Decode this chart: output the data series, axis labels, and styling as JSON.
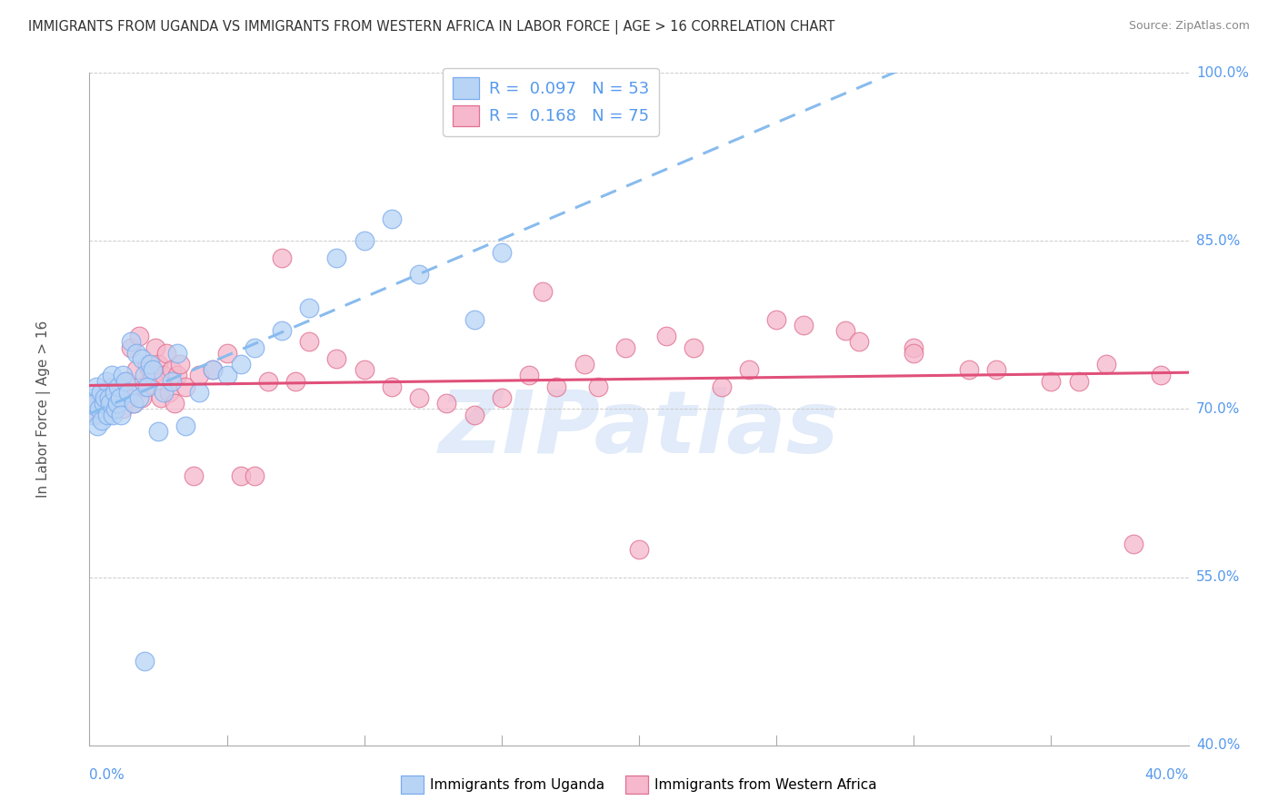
{
  "title": "IMMIGRANTS FROM UGANDA VS IMMIGRANTS FROM WESTERN AFRICA IN LABOR FORCE | AGE > 16 CORRELATION CHART",
  "source": "Source: ZipAtlas.com",
  "ylabel_label": "In Labor Force | Age > 16",
  "xmin": 0.0,
  "xmax": 40.0,
  "ymin": 40.0,
  "ymax": 100.0,
  "yticks": [
    40.0,
    55.0,
    70.0,
    85.0,
    100.0
  ],
  "xticks": [
    0.0,
    5.0,
    10.0,
    15.0,
    20.0,
    25.0,
    30.0,
    35.0,
    40.0
  ],
  "uganda_color": "#b8d4f5",
  "uganda_edge": "#7aabee",
  "western_africa_color": "#f5b8cc",
  "western_africa_edge": "#e07090",
  "trend_uganda_color": "#88bbee",
  "trend_western_color": "#e0507a",
  "legend_label_uganda": "Immigrants from Uganda",
  "legend_label_western": "Immigrants from Western Africa",
  "watermark": "ZIPatlas",
  "uganda_x": [
    0.1,
    0.15,
    0.2,
    0.25,
    0.3,
    0.35,
    0.4,
    0.45,
    0.5,
    0.55,
    0.6,
    0.65,
    0.7,
    0.75,
    0.8,
    0.85,
    0.9,
    0.95,
    1.0,
    1.05,
    1.1,
    1.15,
    1.2,
    1.3,
    1.4,
    1.5,
    1.6,
    1.7,
    1.8,
    1.9,
    2.0,
    2.1,
    2.2,
    2.3,
    2.5,
    2.7,
    3.0,
    3.2,
    3.5,
    4.0,
    4.5,
    5.0,
    5.5,
    6.0,
    7.0,
    8.0,
    9.0,
    10.0,
    11.0,
    12.0,
    14.0,
    15.0,
    2.0
  ],
  "uganda_y": [
    69.5,
    71.0,
    70.5,
    72.0,
    68.5,
    70.0,
    71.5,
    69.0,
    70.5,
    71.0,
    72.5,
    69.5,
    71.0,
    70.5,
    73.0,
    69.5,
    71.5,
    70.0,
    70.5,
    72.0,
    71.0,
    69.5,
    73.0,
    72.5,
    71.5,
    76.0,
    70.5,
    75.0,
    71.0,
    74.5,
    73.0,
    72.0,
    74.0,
    73.5,
    68.0,
    71.5,
    72.5,
    75.0,
    68.5,
    71.5,
    73.5,
    73.0,
    74.0,
    75.5,
    77.0,
    79.0,
    83.5,
    85.0,
    87.0,
    82.0,
    78.0,
    84.0,
    47.5
  ],
  "western_x": [
    0.1,
    0.2,
    0.3,
    0.4,
    0.5,
    0.6,
    0.7,
    0.8,
    0.9,
    1.0,
    1.1,
    1.2,
    1.3,
    1.4,
    1.5,
    1.6,
    1.7,
    1.8,
    1.9,
    2.0,
    2.1,
    2.2,
    2.3,
    2.4,
    2.5,
    2.6,
    2.7,
    2.8,
    2.9,
    3.0,
    3.1,
    3.2,
    3.3,
    3.5,
    3.8,
    4.0,
    4.5,
    5.0,
    5.5,
    6.0,
    6.5,
    7.0,
    7.5,
    8.0,
    9.0,
    10.0,
    11.0,
    12.0,
    13.0,
    14.0,
    15.0,
    16.0,
    17.0,
    18.0,
    19.5,
    21.0,
    23.0,
    25.0,
    27.5,
    30.0,
    33.0,
    36.0,
    38.0,
    20.0,
    22.0,
    26.0,
    28.0,
    30.0,
    32.0,
    35.0,
    37.0,
    39.0,
    16.5,
    18.5,
    24.0
  ],
  "western_y": [
    70.0,
    69.5,
    70.5,
    71.0,
    70.0,
    71.5,
    70.5,
    72.0,
    71.0,
    70.5,
    71.5,
    70.0,
    72.5,
    71.0,
    75.5,
    70.5,
    73.5,
    76.5,
    71.0,
    72.0,
    74.0,
    73.5,
    73.0,
    75.5,
    74.0,
    71.0,
    73.0,
    75.0,
    71.5,
    73.5,
    70.5,
    73.0,
    74.0,
    72.0,
    64.0,
    73.0,
    73.5,
    75.0,
    64.0,
    64.0,
    72.5,
    83.5,
    72.5,
    76.0,
    74.5,
    73.5,
    72.0,
    71.0,
    70.5,
    69.5,
    71.0,
    73.0,
    72.0,
    74.0,
    75.5,
    76.5,
    72.0,
    78.0,
    77.0,
    75.5,
    73.5,
    72.5,
    58.0,
    57.5,
    75.5,
    77.5,
    76.0,
    75.0,
    73.5,
    72.5,
    74.0,
    73.0,
    80.5,
    72.0,
    73.5
  ]
}
